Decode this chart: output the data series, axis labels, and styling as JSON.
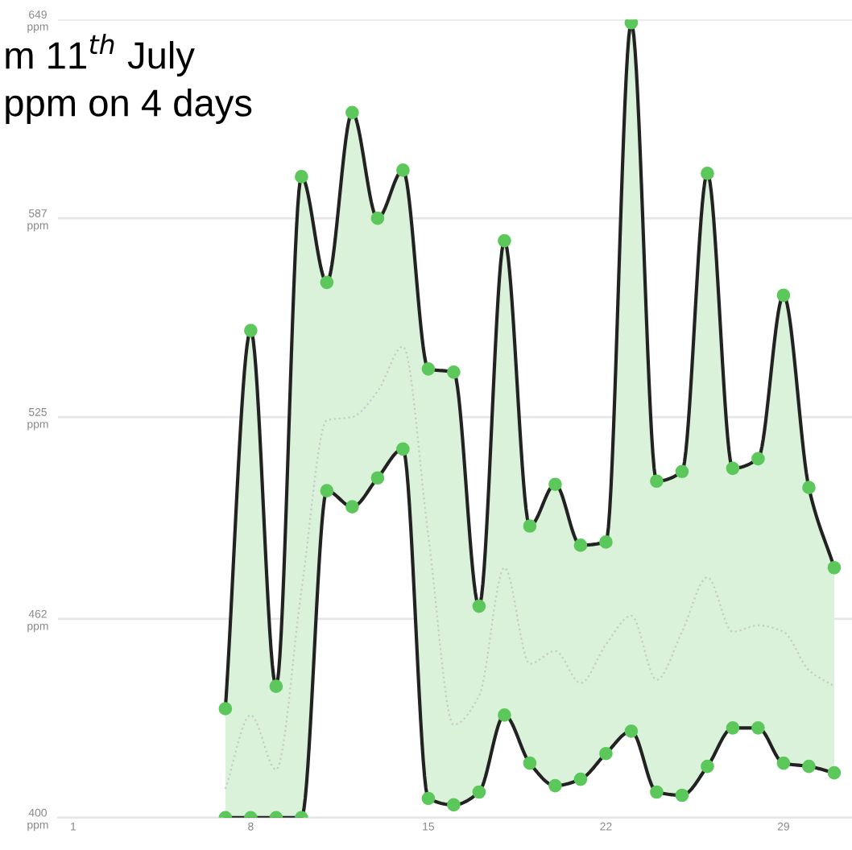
{
  "chart_data": {
    "type": "line",
    "x": [
      7,
      8,
      9,
      10,
      11,
      12,
      13,
      14,
      15,
      16,
      17,
      18,
      19,
      20,
      21,
      22,
      23,
      24,
      25,
      26,
      27,
      28,
      29,
      30,
      31
    ],
    "series": [
      {
        "color": "#222222",
        "marker": "circle",
        "values": [
          434,
          552,
          441,
          600,
          567,
          620,
          587,
          602,
          540,
          539,
          466,
          580,
          491,
          504,
          485,
          486,
          648,
          505,
          508,
          601,
          509,
          512,
          563,
          503,
          478
        ]
      },
      {
        "color": "#222222",
        "marker": "circle",
        "values": [
          400,
          400,
          400,
          400,
          502,
          497,
          506,
          515,
          406,
          404,
          408,
          432,
          417,
          410,
          412,
          420,
          427,
          408,
          407,
          416,
          428,
          428,
          417,
          416,
          414
        ]
      },
      {
        "color": "#c8c8c8",
        "line_style": "dotted",
        "values": [
          409,
          432,
          415,
          471,
          524,
          525,
          533,
          547,
          488,
          429,
          438,
          478,
          448,
          452,
          442,
          454,
          463,
          443,
          458,
          475,
          458,
          460,
          458,
          446,
          441
        ],
        "upper": [
          434,
          552,
          441,
          600,
          567,
          620,
          587,
          602,
          540,
          539,
          466,
          580,
          491,
          504,
          485,
          486,
          648,
          505,
          508,
          601,
          509,
          512,
          563,
          503,
          478
        ],
        "lower": [
          400,
          400,
          400,
          400,
          502,
          497,
          506,
          515,
          406,
          404,
          408,
          432,
          417,
          410,
          412,
          420,
          427,
          408,
          407,
          416,
          428,
          428,
          417,
          416,
          414
        ]
      }
    ],
    "xlim": [
      0.4,
      31.7
    ],
    "xticks": [
      1,
      8,
      15,
      22,
      29
    ],
    "ylim": [
      400,
      649
    ],
    "yticks": [
      {
        "value": 400,
        "label": "400\nppm"
      },
      {
        "value": 462,
        "label": "462\nppm"
      },
      {
        "value": 525,
        "label": "525\nppm"
      },
      {
        "value": 587,
        "label": "587\nppm"
      },
      {
        "value": 649,
        "label": "649\nppm"
      }
    ],
    "grid": "y",
    "annotations": [
      "m 11$^{th}$ July",
      "ppm on 4 days"
    ]
  }
}
